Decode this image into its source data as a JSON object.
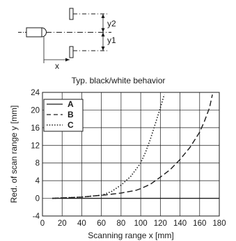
{
  "diagram": {
    "labels": {
      "y2": "y2",
      "y1": "y1",
      "x": "x"
    },
    "caption": "Typ. black/white behavior"
  },
  "chart_data": {
    "type": "line",
    "title": "",
    "xlabel": "Scanning range x [mm]",
    "ylabel": "Red. of scan range y [mm]",
    "xlim": [
      0,
      180
    ],
    "ylim": [
      -4,
      24
    ],
    "xticks": [
      0,
      20,
      40,
      60,
      80,
      100,
      120,
      140,
      160,
      180
    ],
    "yticks": [
      -4,
      0,
      4,
      8,
      12,
      16,
      20,
      24
    ],
    "grid": true,
    "legend_position": "top-left",
    "series": [
      {
        "name": "A",
        "style": "solid",
        "x": [
          10,
          180
        ],
        "y": [
          0,
          0
        ]
      },
      {
        "name": "B",
        "style": "dashed",
        "x": [
          10,
          40,
          65,
          80,
          95,
          100,
          110,
          120,
          130,
          140,
          150,
          160,
          165,
          170,
          173
        ],
        "y": [
          0,
          0.3,
          0.8,
          1.2,
          1.8,
          2.2,
          3.2,
          4.8,
          6.5,
          8.8,
          11.5,
          15,
          17.5,
          20.5,
          23.5
        ]
      },
      {
        "name": "C",
        "style": "dotted",
        "x": [
          10,
          40,
          60,
          70,
          80,
          90,
          100,
          105,
          110,
          115,
          120,
          124
        ],
        "y": [
          0,
          0.3,
          0.7,
          1.5,
          3,
          5,
          8,
          10.5,
          13.5,
          17,
          20.5,
          23.5
        ]
      }
    ]
  }
}
